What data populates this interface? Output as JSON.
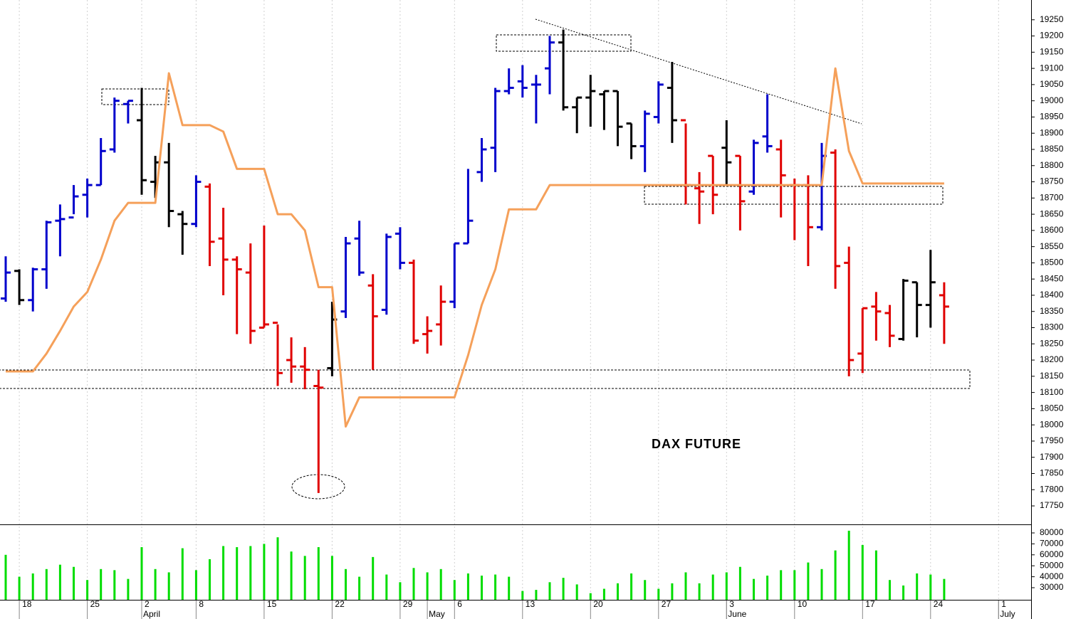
{
  "chart_data": [
    {
      "type": "ohlc",
      "title": "DAX FUTURE",
      "ylim": [
        17693,
        19311
      ],
      "yticks": [
        17750,
        17800,
        17850,
        17900,
        17950,
        18000,
        18050,
        18100,
        18150,
        18200,
        18250,
        18300,
        18350,
        18400,
        18450,
        18500,
        18550,
        18600,
        18650,
        18700,
        18750,
        18800,
        18850,
        18900,
        18950,
        19000,
        19050,
        19100,
        19150,
        19200,
        19250
      ],
      "open": [
        18390,
        18475,
        18385,
        18480,
        18630,
        18640,
        18710,
        18740,
        18850,
        18990,
        18940,
        18750,
        18810,
        18650,
        18620,
        18735,
        18575,
        18510,
        18470,
        18300,
        18315,
        18200,
        18180,
        18120,
        18175,
        18350,
        18575,
        18430,
        18355,
        18590,
        18500,
        18280,
        18310,
        18380,
        18560,
        18780,
        18855,
        19030,
        19060,
        19050,
        19100,
        19180,
        18980,
        19010,
        19020,
        19030,
        18930,
        18860,
        18950,
        19040,
        18940,
        18730,
        18830,
        18855,
        18830,
        18720,
        18890,
        18850,
        18740,
        18740,
        18610,
        18840,
        18500,
        18220,
        18365,
        18345,
        18265,
        18440,
        18370,
        18400,
        null,
        null,
        null,
        null,
        null
      ],
      "high": [
        18520,
        18480,
        18485,
        18630,
        18680,
        18740,
        18760,
        18885,
        19010,
        19000,
        19040,
        18830,
        18870,
        18660,
        18770,
        18745,
        18670,
        18520,
        18560,
        18615,
        18310,
        18270,
        18240,
        18170,
        18380,
        18580,
        18630,
        18465,
        18590,
        18610,
        18510,
        18335,
        18430,
        18560,
        18790,
        18885,
        19040,
        19100,
        19110,
        19080,
        19200,
        19220,
        19010,
        19080,
        19030,
        19030,
        18930,
        18970,
        19060,
        19120,
        18930,
        18780,
        18830,
        18940,
        18830,
        18880,
        19020,
        18880,
        18760,
        18770,
        18870,
        18850,
        18550,
        18360,
        18410,
        18370,
        18450,
        18440,
        18540,
        18440,
        null,
        null,
        null,
        null,
        null
      ],
      "low": [
        18380,
        18370,
        18350,
        18420,
        18520,
        18650,
        18640,
        18740,
        18840,
        18930,
        18710,
        18700,
        18610,
        18525,
        18610,
        18490,
        18400,
        18280,
        18250,
        18300,
        18120,
        18130,
        18110,
        17790,
        18150,
        18330,
        18460,
        18170,
        18340,
        18480,
        18250,
        18220,
        18245,
        18360,
        18560,
        18750,
        18780,
        19020,
        19010,
        18930,
        19020,
        18970,
        18900,
        18920,
        18910,
        18860,
        18820,
        18780,
        18930,
        18870,
        18680,
        18620,
        18650,
        18740,
        18600,
        18710,
        18840,
        18640,
        18570,
        18490,
        18600,
        18420,
        18150,
        18160,
        18260,
        18240,
        18260,
        18270,
        18300,
        18250,
        null,
        null,
        null,
        null,
        null
      ],
      "close": [
        18470,
        18385,
        18480,
        18625,
        18635,
        18705,
        18740,
        18845,
        19000,
        19000,
        18755,
        18810,
        18660,
        18620,
        18750,
        18565,
        18510,
        18480,
        18290,
        18310,
        18160,
        18180,
        18170,
        18115,
        18325,
        18560,
        18470,
        18335,
        18580,
        18500,
        18260,
        18290,
        18380,
        18560,
        18630,
        18850,
        19030,
        19040,
        19040,
        19050,
        19180,
        18980,
        19010,
        19030,
        19030,
        18920,
        18860,
        18960,
        19050,
        18940,
        18740,
        18720,
        18710,
        18810,
        18690,
        18870,
        18860,
        18770,
        18740,
        18610,
        18830,
        18490,
        18200,
        18360,
        18350,
        18275,
        18445,
        18370,
        18440,
        18365,
        null,
        null,
        null,
        null,
        null
      ],
      "bar_colors": [
        "#0000cc",
        "#000000",
        "#0000cc",
        "#0000cc",
        "#0000cc",
        "#0000cc",
        "#0000cc",
        "#0000cc",
        "#0000cc",
        "#0000cc",
        "#000000",
        "#000000",
        "#000000",
        "#000000",
        "#0000cc",
        "#e00000",
        "#e00000",
        "#e00000",
        "#e00000",
        "#e00000",
        "#e00000",
        "#e00000",
        "#e00000",
        "#e00000",
        "#000000",
        "#0000cc",
        "#0000cc",
        "#e00000",
        "#0000cc",
        "#0000cc",
        "#e00000",
        "#e00000",
        "#e00000",
        "#0000cc",
        "#0000cc",
        "#0000cc",
        "#0000cc",
        "#0000cc",
        "#0000cc",
        "#0000cc",
        "#0000cc",
        "#000000",
        "#000000",
        "#000000",
        "#000000",
        "#000000",
        "#000000",
        "#0000cc",
        "#0000cc",
        "#000000",
        "#e00000",
        "#e00000",
        "#e00000",
        "#000000",
        "#e00000",
        "#0000cc",
        "#0000cc",
        "#e00000",
        "#e00000",
        "#e00000",
        "#0000cc",
        "#e00000",
        "#e00000",
        "#e00000",
        "#e00000",
        "#e00000",
        "#000000",
        "#000000",
        "#000000",
        "#e00000",
        null,
        null,
        null,
        null,
        null
      ],
      "line": {
        "color": "#f5a05a",
        "values": [
          18165,
          18165,
          18165,
          18220,
          18290,
          18365,
          18410,
          18510,
          18630,
          18685,
          18685,
          18685,
          19085,
          18925,
          18925,
          18925,
          18905,
          18790,
          18790,
          18790,
          18650,
          18650,
          18600,
          18425,
          18425,
          17995,
          18085,
          18085,
          18085,
          18085,
          18085,
          18085,
          18085,
          18085,
          18215,
          18370,
          18480,
          18665,
          18665,
          18665,
          18740,
          18740,
          18740,
          18740,
          18740,
          18740,
          18740,
          18740,
          18740,
          18740,
          18740,
          18740,
          18740,
          18740,
          18740,
          18740,
          18740,
          18740,
          18740,
          18740,
          18740,
          19100,
          18845,
          18745,
          18745,
          18745,
          18745,
          18745,
          18745,
          18745,
          null,
          null,
          null,
          null,
          null
        ]
      }
    },
    {
      "type": "bar",
      "color": "#00dd00",
      "ylim": [
        18960,
        87140
      ],
      "yticks": [
        30000,
        40000,
        50000,
        60000,
        70000,
        80000
      ],
      "categories": [
        null,
        "18",
        null,
        null,
        null,
        null,
        "25",
        null,
        null,
        null,
        "2",
        null,
        null,
        null,
        "8",
        null,
        null,
        null,
        null,
        "15",
        null,
        null,
        null,
        null,
        "22",
        null,
        null,
        null,
        null,
        "29",
        null,
        null,
        null,
        "6",
        null,
        null,
        null,
        null,
        "13",
        null,
        null,
        null,
        null,
        "20",
        null,
        null,
        null,
        null,
        "27",
        null,
        null,
        null,
        null,
        "3",
        null,
        null,
        null,
        null,
        "10",
        null,
        null,
        null,
        null,
        "17",
        null,
        null,
        null,
        null,
        "24",
        null,
        null,
        null,
        null,
        "1",
        null
      ],
      "month_labels": [
        {
          "index": 10,
          "label": "April"
        },
        {
          "index": 31,
          "label": "May"
        },
        {
          "index": 53,
          "label": "June"
        },
        {
          "index": 73,
          "label": "July"
        }
      ],
      "values": [
        60000,
        40000,
        43000,
        47000,
        51000,
        49000,
        37000,
        47000,
        46000,
        38000,
        67000,
        47000,
        44000,
        66000,
        46000,
        56000,
        68000,
        67000,
        68000,
        70000,
        76000,
        63000,
        59000,
        67000,
        59000,
        47000,
        40000,
        58000,
        42000,
        35000,
        48000,
        44000,
        47000,
        37000,
        43000,
        41000,
        42000,
        40000,
        27000,
        28000,
        35000,
        39000,
        33000,
        25000,
        29000,
        34000,
        43000,
        37000,
        29000,
        34000,
        44000,
        34000,
        42000,
        44000,
        49000,
        38000,
        41000,
        46000,
        46000,
        53000,
        47000,
        64000,
        82000,
        69000,
        64000,
        37000,
        32000,
        43000,
        42000,
        38000,
        null,
        null,
        null,
        null,
        null
      ]
    }
  ]
}
